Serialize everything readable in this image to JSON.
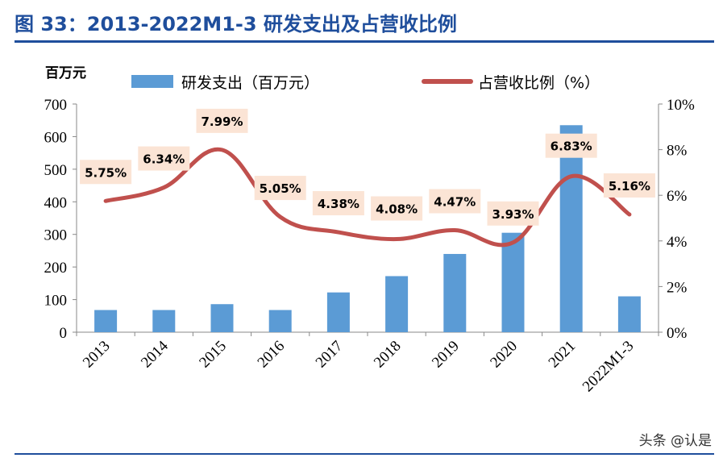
{
  "header": {
    "title": "图 33：2013-2022M1-3 研发支出及占营收比例"
  },
  "watermark": "头条 @认是",
  "chart_data": {
    "type": "bar+line",
    "title": "",
    "unit_label": "百万元",
    "categories": [
      "2013",
      "2014",
      "2015",
      "2016",
      "2017",
      "2018",
      "2019",
      "2020",
      "2021",
      "2022M1-3"
    ],
    "series": [
      {
        "name": "研发支出（百万元）",
        "type": "bar",
        "axis": "left",
        "color": "#5b9bd5",
        "values": [
          68,
          68,
          86,
          68,
          122,
          172,
          240,
          305,
          635,
          110
        ]
      },
      {
        "name": "占营收比例（%）",
        "type": "line",
        "axis": "right",
        "color": "#c0504d",
        "values": [
          5.75,
          6.34,
          7.99,
          5.05,
          4.38,
          4.08,
          4.47,
          3.93,
          6.83,
          5.16
        ],
        "labels": [
          "5.75%",
          "6.34%",
          "7.99%",
          "5.05%",
          "4.38%",
          "4.08%",
          "4.47%",
          "3.93%",
          "6.83%",
          "5.16%"
        ]
      }
    ],
    "y_left": {
      "min": 0,
      "max": 700,
      "ticks": [
        "0",
        "100",
        "200",
        "300",
        "400",
        "500",
        "600",
        "700"
      ]
    },
    "y_right": {
      "min": 0,
      "max": 10,
      "ticks": [
        "0%",
        "2%",
        "4%",
        "6%",
        "8%",
        "10%"
      ]
    },
    "grid": false,
    "legend_position": "top",
    "label_box_color": "#fbe4d5"
  }
}
